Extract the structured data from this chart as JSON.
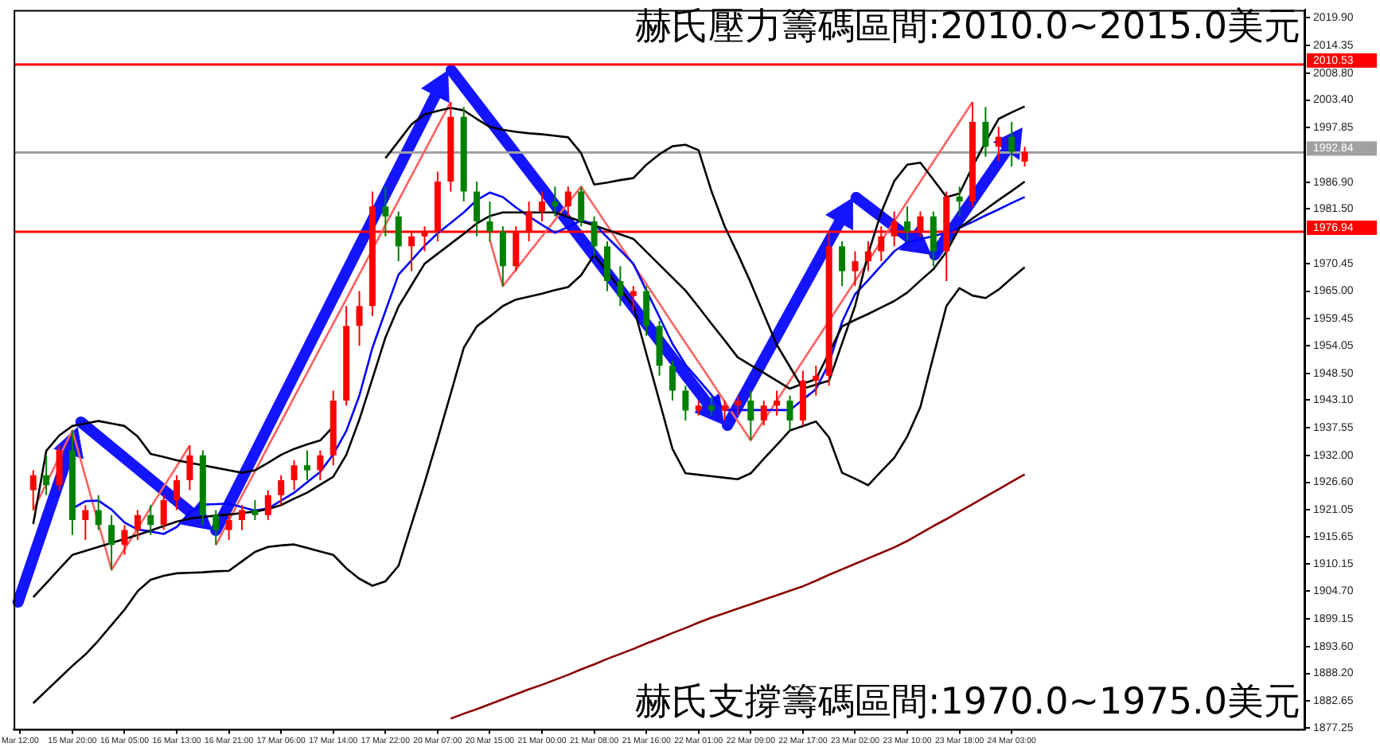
{
  "chart_data": {
    "type": "candlestick",
    "legend": false,
    "grid": false,
    "marker": "none",
    "line_style": "solid",
    "annotations": [
      "赫氏壓力籌碼區間:2010.0~2015.0美元",
      "赫氏支撐籌碼區間:1970.0~1975.0美元"
    ],
    "categories": [
      "Mar 12:00",
      null,
      null,
      null,
      "15 Mar 20:00",
      null,
      null,
      null,
      "16 Mar 05:00",
      null,
      null,
      null,
      "16 Mar 13:00",
      null,
      null,
      null,
      "16 Mar 21:00",
      null,
      null,
      null,
      "17 Mar 06:00",
      null,
      null,
      null,
      "17 Mar 14:00",
      null,
      null,
      null,
      "17 Mar 22:00",
      null,
      null,
      null,
      "20 Mar 07:00",
      null,
      null,
      null,
      "20 Mar 15:00",
      null,
      null,
      null,
      "21 Mar 00:00",
      null,
      null,
      null,
      "21 Mar 08:00",
      null,
      null,
      null,
      "21 Mar 16:00",
      null,
      null,
      null,
      "22 Mar 01:00",
      null,
      null,
      null,
      "22 Mar 09:00",
      null,
      null,
      null,
      "22 Mar 17:00",
      null,
      null,
      null,
      "23 Mar 02:00",
      null,
      null,
      null,
      "23 Mar 10:00",
      null,
      null,
      null,
      "23 Mar 18:00",
      null,
      null,
      null,
      "24 Mar 03:00",
      null,
      null,
      null,
      null,
      null,
      null,
      null,
      null,
      null,
      null,
      null,
      null,
      null,
      null,
      null,
      null,
      null,
      null,
      null,
      null,
      null,
      null
    ],
    "ylim": [
      1877.0,
      2021.5
    ],
    "yticks": [
      {
        "value": 2019.9,
        "label": "2019.90"
      },
      {
        "value": 2014.35,
        "label": "2014.35"
      },
      {
        "value": 2008.8,
        "label": "2008.80"
      },
      {
        "value": 2003.4,
        "label": "2003.40"
      },
      {
        "value": 1997.85,
        "label": "1997.85"
      },
      {
        "value": 1986.9,
        "label": "1986.90"
      },
      {
        "value": 1981.5,
        "label": "1981.50"
      },
      {
        "value": 1970.45,
        "label": "1970.45"
      },
      {
        "value": 1965.0,
        "label": "1965.00"
      },
      {
        "value": 1959.45,
        "label": "1959.45"
      },
      {
        "value": 1954.05,
        "label": "1954.05"
      },
      {
        "value": 1948.5,
        "label": "1948.50"
      },
      {
        "value": 1943.1,
        "label": "1943.10"
      },
      {
        "value": 1937.55,
        "label": "1937.55"
      },
      {
        "value": 1932.0,
        "label": "1932.00"
      },
      {
        "value": 1926.6,
        "label": "1926.60"
      },
      {
        "value": 1921.05,
        "label": "1921.05"
      },
      {
        "value": 1915.65,
        "label": "1915.65"
      },
      {
        "value": 1910.15,
        "label": "1910.15"
      },
      {
        "value": 1904.7,
        "label": "1904.70"
      },
      {
        "value": 1899.15,
        "label": "1899.15"
      },
      {
        "value": 1893.6,
        "label": "1893.60"
      },
      {
        "value": 1888.2,
        "label": "1888.20"
      },
      {
        "value": 1882.65,
        "label": "1882.65"
      },
      {
        "value": 1877.25,
        "label": "1877.25"
      }
    ],
    "ref_lines": [
      {
        "axis": "y",
        "value": 2010.53,
        "label": "2010.53",
        "color": "#ff0000"
      },
      {
        "axis": "y",
        "value": 1992.84,
        "label": "1992.84",
        "color": "#a0a0a0"
      },
      {
        "axis": "y",
        "value": 1976.94,
        "label": "1976.94",
        "color": "#ff0000"
      }
    ],
    "ohlc": [
      null,
      [
        1925,
        1929,
        1921,
        1928
      ],
      [
        1928,
        1932,
        1924,
        1926
      ],
      [
        1926,
        1934,
        1925,
        1933
      ],
      [
        1933,
        1937,
        1916,
        1919
      ],
      [
        1919,
        1922,
        1915,
        1921
      ],
      [
        1921,
        1924,
        1917,
        1918
      ],
      [
        1918,
        1920,
        1909,
        1914
      ],
      [
        1914,
        1918,
        1912,
        1917
      ],
      [
        1917,
        1921,
        1915,
        1920
      ],
      [
        1920,
        1922,
        1916,
        1918
      ],
      [
        1918,
        1924,
        1917,
        1923
      ],
      [
        1923,
        1928,
        1921,
        1927
      ],
      [
        1927,
        1934,
        1925,
        1932
      ],
      [
        1932,
        1933,
        1918,
        1920
      ],
      [
        1920,
        1921,
        1914,
        1917
      ],
      [
        1917,
        1920,
        1915,
        1919
      ],
      [
        1919,
        1922,
        1917,
        1921
      ],
      [
        1921,
        1923,
        1919,
        1920
      ],
      [
        1920,
        1925,
        1919,
        1924
      ],
      [
        1924,
        1928,
        1922,
        1927
      ],
      [
        1927,
        1931,
        1925,
        1930
      ],
      [
        1930,
        1933,
        1927,
        1929
      ],
      [
        1929,
        1933,
        1927,
        1932
      ],
      [
        1932,
        1945,
        1930,
        1943
      ],
      [
        1943,
        1962,
        1942,
        1958
      ],
      [
        1958,
        1965,
        1954,
        1962
      ],
      [
        1962,
        1985,
        1960,
        1982
      ],
      [
        1982,
        1986,
        1976,
        1980
      ],
      [
        1980,
        1981,
        1971,
        1974
      ],
      [
        1974,
        1977,
        1969,
        1976
      ],
      [
        1976,
        1978,
        1973,
        1977
      ],
      [
        1977,
        1989,
        1975,
        1987
      ],
      [
        1987,
        2003,
        1985,
        2000
      ],
      [
        2000,
        2002,
        1983,
        1985
      ],
      [
        1985,
        1987,
        1976,
        1979
      ],
      [
        1979,
        1983,
        1975,
        1977
      ],
      [
        1977,
        1978,
        1966,
        1970
      ],
      [
        1970,
        1978,
        1969,
        1977
      ],
      [
        1977,
        1983,
        1975,
        1981
      ],
      [
        1981,
        1985,
        1979,
        1983
      ],
      [
        1983,
        1986,
        1980,
        1982
      ],
      [
        1982,
        1986,
        1980,
        1985
      ],
      [
        1985,
        1986,
        1978,
        1979
      ],
      [
        1979,
        1980,
        1972,
        1974
      ],
      [
        1974,
        1975,
        1965,
        1967
      ],
      [
        1967,
        1970,
        1962,
        1964
      ],
      [
        1964,
        1966,
        1961,
        1965
      ],
      [
        1965,
        1966,
        1956,
        1958
      ],
      [
        1958,
        1959,
        1948,
        1950
      ],
      [
        1950,
        1951,
        1943,
        1945
      ],
      [
        1945,
        1946,
        1939,
        1941
      ],
      [
        1941,
        1943,
        1940,
        1942
      ],
      [
        1942,
        1944,
        1940,
        1941
      ],
      [
        1941,
        1943,
        1939,
        1942
      ],
      [
        1942,
        1944,
        1940,
        1943
      ],
      [
        1943,
        1945,
        1935,
        1939
      ],
      [
        1939,
        1943,
        1938,
        1942
      ],
      [
        1942,
        1945,
        1940,
        1943
      ],
      [
        1943,
        1944,
        1937,
        1939
      ],
      [
        1939,
        1949,
        1938,
        1947
      ],
      [
        1947,
        1950,
        1944,
        1948
      ],
      [
        1948,
        1977,
        1946,
        1974
      ],
      [
        1974,
        1975,
        1966,
        1969
      ],
      [
        1969,
        1973,
        1966,
        1971
      ],
      [
        1971,
        1975,
        1969,
        1973
      ],
      [
        1973,
        1978,
        1971,
        1976
      ],
      [
        1976,
        1981,
        1974,
        1979
      ],
      [
        1979,
        1982,
        1975,
        1977
      ],
      [
        1977,
        1981,
        1976,
        1980
      ],
      [
        1980,
        1981,
        1970,
        1973
      ],
      [
        1973,
        1985,
        1967,
        1984
      ],
      [
        1984,
        1986,
        1980,
        1983
      ],
      [
        1983,
        2003,
        1982,
        1999
      ],
      [
        1999,
        2002,
        1992,
        1994
      ],
      [
        1994,
        1998,
        1991,
        1996
      ],
      [
        1996,
        1999,
        1990,
        1993
      ],
      [
        1991,
        1994,
        1990,
        1993
      ],
      null,
      null,
      null,
      null,
      null,
      null,
      null,
      null,
      null,
      null,
      null,
      null,
      null,
      null,
      null,
      null,
      null,
      null,
      null,
      null,
      null
    ],
    "colors": [
      null,
      "#ff0000",
      "#008000",
      "#ff0000",
      "#008000",
      "#ff0000",
      "#008000",
      "#008000",
      "#ff0000",
      "#ff0000",
      "#008000",
      "#ff0000",
      "#ff0000",
      "#ff0000",
      "#008000",
      "#008000",
      "#ff0000",
      "#ff0000",
      "#008000",
      "#ff0000",
      "#ff0000",
      "#ff0000",
      "#008000",
      "#ff0000",
      "#ff0000",
      "#ff0000",
      "#ff0000",
      "#ff0000",
      "#008000",
      "#008000",
      "#ff0000",
      "#ff0000",
      "#ff0000",
      "#ff0000",
      "#008000",
      "#008000",
      "#008000",
      "#008000",
      "#ff0000",
      "#ff0000",
      "#ff0000",
      "#008000",
      "#ff0000",
      "#008000",
      "#008000",
      "#008000",
      "#008000",
      "#ff0000",
      "#008000",
      "#008000",
      "#008000",
      "#008000",
      "#ff0000",
      "#008000",
      "#ff0000",
      "#ff0000",
      "#008000",
      "#ff0000",
      "#ff0000",
      "#008000",
      "#ff0000",
      "#ff0000",
      "#ff0000",
      "#008000",
      "#ff0000",
      "#ff0000",
      "#ff0000",
      "#ff0000",
      "#008000",
      "#ff0000",
      "#008000",
      "#ff0000",
      "#008000",
      "#ff0000",
      "#008000",
      "#ff0000",
      "#008000",
      "#ff0000",
      null,
      null,
      null,
      null,
      null,
      null,
      null,
      null,
      null,
      null,
      null,
      null,
      null,
      null,
      null,
      null,
      null,
      null,
      null,
      null,
      null
    ],
    "series": [
      {
        "type": "line",
        "color": "#000000",
        "values": [
          null,
          1918.2,
          1932.9,
          1936.0,
          1937.9,
          1938.4,
          1938.9,
          1938.4,
          1937.9,
          1935.8,
          1932.3,
          1931.7,
          1931.0,
          1930.5,
          1930.0,
          1929.5,
          1929.0,
          1928.5,
          1929.0,
          1930.5,
          1932.1,
          1933.3,
          1934.2,
          1935.0,
          1937.8,
          null,
          null,
          null,
          1991.7,
          1995.1,
          1998.5,
          2000.5,
          2001.2,
          2001.8,
          2001.3,
          1999.6,
          1998.0,
          1997.4,
          1997.0,
          1996.7,
          1996.5,
          1996.2,
          1995.9,
          1992.7,
          1986.4,
          1986.8,
          1987.3,
          1987.7,
          1990.4,
          1992.5,
          1994.1,
          1994.4,
          1993.3,
          1985.0,
          1978.0,
          1972.5,
          1966.7,
          1960.4,
          1954.2,
          1949.8,
          1945.4,
          1946.2,
          1947.0,
          1954.5,
          1962.0,
          1972.5,
          1980.8,
          1987.1,
          1990.4,
          1990.8,
          1987.4,
          1983.9,
          1984.6,
          1990.0,
          1995.0,
          1999.6,
          2000.9,
          2002.1,
          null,
          null,
          null,
          null,
          null,
          null,
          null,
          null,
          null,
          null,
          null,
          null,
          null,
          null,
          null,
          null,
          null,
          null,
          null,
          null,
          null
        ]
      },
      {
        "type": "line",
        "color": "#000000",
        "values": [
          null,
          1903.5,
          1906.3,
          1909.2,
          1912.0,
          1912.8,
          1913.6,
          1914.4,
          1915.2,
          1916.0,
          1916.9,
          1917.8,
          1918.7,
          1919.3,
          1919.6,
          1919.9,
          1920.1,
          1920.4,
          1920.7,
          1921.2,
          1922.0,
          1923.3,
          1924.5,
          1926.1,
          1927.7,
          1932.1,
          1939.2,
          1947.4,
          1955.7,
          1961.9,
          1966.2,
          1970.5,
          1972.5,
          1974.5,
          1976.5,
          1978.6,
          1980.1,
          1980.8,
          1980.8,
          1980.8,
          1980.8,
          1980.8,
          1979.9,
          1979.0,
          1978.2,
          1977.3,
          1976.4,
          1975.5,
          1972.9,
          1970.3,
          1967.7,
          1965.1,
          1961.8,
          1958.4,
          1955.1,
          1951.7,
          1950.1,
          1948.6,
          1947.0,
          1945.4,
          1946.4,
          1947.3,
          1952.6,
          1957.9,
          1959.2,
          1960.4,
          1961.7,
          1963.0,
          1964.7,
          1967.1,
          1969.4,
          1972.9,
          1977.7,
          1979.6,
          1981.4,
          1983.3,
          1985.1,
          1987.0,
          null,
          null,
          null,
          null,
          null,
          null,
          null,
          null,
          null,
          null,
          null,
          null,
          null,
          null,
          null,
          null,
          null,
          null,
          null,
          null,
          null
        ]
      },
      {
        "type": "line",
        "color": "#000000",
        "values": [
          null,
          1882.2,
          1884.7,
          1887.2,
          1889.7,
          1892.0,
          1894.8,
          1897.9,
          1901.0,
          1904.7,
          1907.0,
          1907.8,
          1908.3,
          1908.4,
          1908.5,
          1908.7,
          1908.8,
          1910.7,
          1912.6,
          1913.6,
          1913.9,
          1914.1,
          1913.4,
          1912.7,
          1912.0,
          1909.3,
          1907.2,
          1905.8,
          1906.7,
          1909.8,
          1918.2,
          1926.5,
          1935.3,
          1944.4,
          1953.6,
          1957.9,
          1959.9,
          1962.0,
          1963.3,
          1963.9,
          1964.5,
          1965.2,
          1965.8,
          1968.2,
          1972.3,
          1968.9,
          1965.4,
          1962.0,
          1952.4,
          1942.9,
          1933.3,
          1928.4,
          1928.1,
          1927.8,
          1927.5,
          1927.2,
          1928.4,
          1931.3,
          1934.1,
          1937.0,
          1937.9,
          1938.8,
          1935.6,
          1928.5,
          1927.3,
          1926.0,
          1928.8,
          1931.5,
          1935.8,
          1941.7,
          1951.9,
          1962.0,
          1965.6,
          1964.1,
          1963.6,
          1965.3,
          1967.6,
          1969.8,
          null,
          null,
          null,
          null,
          null,
          null,
          null,
          null,
          null,
          null,
          null,
          null,
          null,
          null,
          null,
          null,
          null,
          null,
          null,
          null,
          null
        ]
      },
      {
        "type": "line",
        "color": "#0000ff",
        "values": [
          null,
          null,
          null,
          null,
          1921.3,
          1922.8,
          1922.9,
          1921.1,
          1918.5,
          1917.1,
          1916.7,
          1916.2,
          1917.6,
          1920.6,
          1922.1,
          1922.2,
          1922.3,
          1921.6,
          1920.9,
          1921.3,
          1922.9,
          1924.5,
          1926.6,
          1928.7,
          1932.2,
          1936.9,
          1944.0,
          1953.6,
          1961.0,
          1968.3,
          1971.2,
          1974.1,
          1976.6,
          1978.7,
          1980.8,
          1983.3,
          1984.8,
          1983.9,
          1981.8,
          1980.0,
          1978.3,
          1976.7,
          1977.9,
          1979.2,
          1978.5,
          1975.8,
          1973.2,
          1970.5,
          1965.1,
          1959.8,
          1954.4,
          1950.2,
          1947.2,
          1944.1,
          1941.1,
          1941.1,
          1941.1,
          1941.1,
          1941.1,
          1941.1,
          1943.2,
          1945.3,
          1950.5,
          1958.8,
          1964.4,
          1967.2,
          1970.1,
          1973.0,
          1974.8,
          1975.4,
          1976.1,
          1976.7,
          1977.7,
          1978.9,
          1980.2,
          1981.4,
          1982.7,
          1983.9,
          null,
          null,
          null,
          null,
          null,
          null,
          null,
          null,
          null,
          null,
          null,
          null,
          null,
          null,
          null,
          null,
          null,
          null,
          null,
          null,
          null
        ]
      },
      {
        "type": "line",
        "color": "#8b0000",
        "values": [
          null,
          null,
          null,
          null,
          null,
          null,
          null,
          null,
          null,
          null,
          null,
          null,
          null,
          null,
          null,
          null,
          null,
          null,
          null,
          null,
          null,
          null,
          null,
          null,
          null,
          null,
          null,
          null,
          null,
          null,
          null,
          null,
          null,
          1879.1,
          1880.1,
          1881.0,
          1882.0,
          1883.0,
          1884.0,
          1885.0,
          1885.9,
          1886.9,
          1887.9,
          1889.0,
          1890.0,
          1891.1,
          1892.1,
          1893.1,
          1894.2,
          1895.2,
          1896.3,
          1897.3,
          1898.4,
          1899.4,
          1900.3,
          1901.2,
          1902.1,
          1903.0,
          1903.9,
          1904.8,
          1905.7,
          1906.8,
          1908.0,
          1909.1,
          1910.2,
          1911.3,
          1912.4,
          1913.5,
          1914.8,
          1916.3,
          1917.8,
          1919.2,
          1920.7,
          1922.2,
          1923.7,
          1925.2,
          1926.7,
          1928.2,
          null,
          null,
          null,
          null,
          null,
          null,
          null,
          null,
          null,
          null,
          null,
          null,
          null,
          null,
          null,
          null,
          null,
          null,
          null,
          null,
          null
        ]
      },
      {
        "type": "line",
        "color": "#ff6060",
        "values": [
          null,
          1921,
          1926.3,
          1931.7,
          1937,
          1927.7,
          1918.3,
          1909,
          1913.2,
          1917.3,
          1921.5,
          1925.7,
          1929.8,
          1934,
          null,
          1914,
          1918.9,
          1923.9,
          1928.8,
          1933.8,
          1938.7,
          1943.7,
          1948.6,
          1953.6,
          1958.5,
          1963.4,
          1968.4,
          1973.3,
          1978.3,
          1983.2,
          1988.2,
          1993.1,
          1998.1,
          2003,
          null,
          null,
          1975.3,
          1966,
          1969.3,
          1972.7,
          1976,
          1979.3,
          1982.7,
          1986,
          1982.1,
          1978.2,
          1974.2,
          1970.3,
          1966.4,
          1962.5,
          1958.5,
          1954.6,
          1950.7,
          1946.8,
          1942.8,
          1938.9,
          1935,
          1939,
          1943,
          1947,
          1951,
          1955,
          1959,
          1963,
          1967,
          1971,
          1975,
          1979,
          1983,
          1987,
          1991,
          1995,
          1999,
          2003,
          null,
          null,
          null,
          null,
          null,
          null,
          null,
          null,
          null,
          null,
          null,
          null,
          null,
          null,
          null,
          null,
          null,
          null,
          null,
          null,
          null,
          null,
          null,
          null,
          null
        ]
      }
    ]
  }
}
